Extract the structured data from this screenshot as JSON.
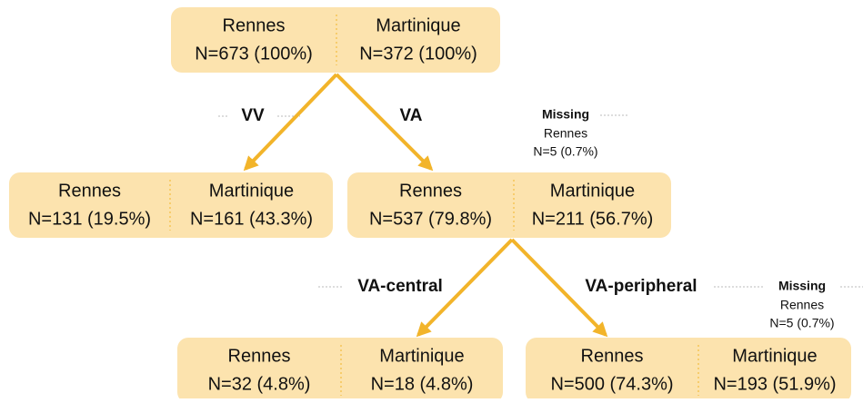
{
  "nodes": [
    {
      "cells": [
        {
          "site": "Rennes",
          "count": "N=673 (100%)"
        },
        {
          "site": "Martinique",
          "count": "N=372 (100%)"
        }
      ]
    },
    {
      "cells": [
        {
          "site": "Rennes",
          "count": "N=131 (19.5%)"
        },
        {
          "site": "Martinique",
          "count": "N=161 (43.3%)"
        }
      ]
    },
    {
      "cells": [
        {
          "site": "Rennes",
          "count": "N=537 (79.8%)"
        },
        {
          "site": "Martinique",
          "count": "N=211 (56.7%)"
        }
      ]
    },
    {
      "cells": [
        {
          "site": "Rennes",
          "count": "N=32 (4.8%)"
        },
        {
          "site": "Martinique",
          "count": "N=18 (4.8%)"
        }
      ]
    },
    {
      "cells": [
        {
          "site": "Rennes",
          "count": "N=500 (74.3%)"
        },
        {
          "site": "Martinique",
          "count": "N=193 (51.9%)"
        }
      ]
    }
  ],
  "edges": [
    {
      "label": "VV"
    },
    {
      "label": "VA"
    },
    {
      "label": "VA-central"
    },
    {
      "label": "VA-peripheral"
    }
  ],
  "missing": [
    {
      "title": "Missing",
      "site": "Rennes",
      "count": "N=5 (0.7%)"
    },
    {
      "title": "Missing",
      "site": "Rennes",
      "count": "N=5 (0.7%)"
    }
  ]
}
